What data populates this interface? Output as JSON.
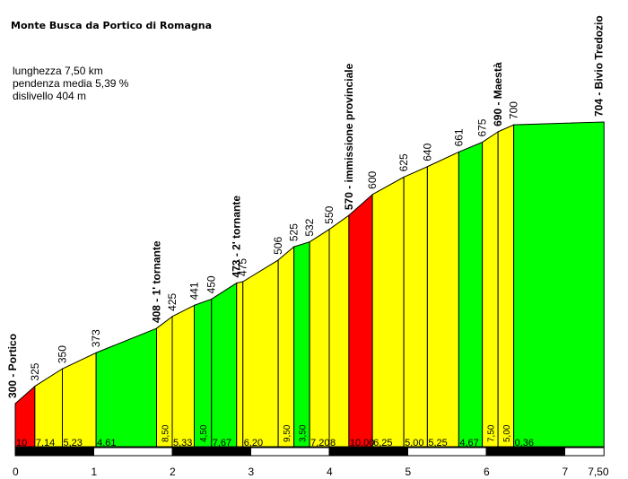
{
  "title": "Monte Busca da Portico di Romagna",
  "stats": {
    "length": "lunghezza 7,50 km",
    "avg_grade": "pendenza media 5,39 %",
    "climb": "dislivello 404 m"
  },
  "chart_data": {
    "type": "area",
    "title": "Monte Busca da Portico di Romagna",
    "x_unit": "km",
    "xlim": [
      0,
      7.5
    ],
    "x_ticks": [
      "0",
      "1",
      "2",
      "3",
      "4",
      "5",
      "6",
      "7",
      "7,50"
    ],
    "ylim": [
      270,
      710
    ],
    "colors": {
      "yellow": "#ffff00",
      "green": "#00ff00",
      "red": "#ff0000",
      "outline": "#000000"
    },
    "points": [
      {
        "x": 0.0,
        "y": 300,
        "label": "300 - Portico",
        "bold": true
      },
      {
        "x": 0.25,
        "y": 325,
        "label": "325"
      },
      {
        "x": 0.6,
        "y": 350,
        "label": "350"
      },
      {
        "x": 1.03,
        "y": 373,
        "label": "373"
      },
      {
        "x": 1.8,
        "y": 408,
        "label": "408 - 1' tornante",
        "bold": true
      },
      {
        "x": 2.0,
        "y": 425,
        "label": "425"
      },
      {
        "x": 2.28,
        "y": 441,
        "label": "441"
      },
      {
        "x": 2.5,
        "y": 450,
        "label": "450"
      },
      {
        "x": 2.82,
        "y": 473,
        "label": "473 - 2' tornante",
        "bold": true
      },
      {
        "x": 2.9,
        "y": 475,
        "label": "475"
      },
      {
        "x": 3.35,
        "y": 506,
        "label": "506"
      },
      {
        "x": 3.55,
        "y": 525,
        "label": "525"
      },
      {
        "x": 3.75,
        "y": 532,
        "label": "532"
      },
      {
        "x": 4.0,
        "y": 550,
        "label": "550"
      },
      {
        "x": 4.25,
        "y": 570,
        "label": "570 - immissione provinciale",
        "bold": true
      },
      {
        "x": 4.55,
        "y": 600,
        "label": "600"
      },
      {
        "x": 4.95,
        "y": 625,
        "label": "625"
      },
      {
        "x": 5.25,
        "y": 640,
        "label": "640"
      },
      {
        "x": 5.65,
        "y": 661,
        "label": "661"
      },
      {
        "x": 5.95,
        "y": 675,
        "label": "675"
      },
      {
        "x": 6.15,
        "y": 690,
        "label": "690 - Maestà",
        "bold": true
      },
      {
        "x": 6.35,
        "y": 700,
        "label": "700"
      },
      {
        "x": 7.5,
        "y": 704,
        "label": "704 - Bivio Tredozio",
        "bold": true
      }
    ],
    "segments": [
      {
        "grade": "10",
        "color": "red"
      },
      {
        "grade": "7,14",
        "color": "yellow"
      },
      {
        "grade": "5,23",
        "color": "yellow"
      },
      {
        "grade": "4,61",
        "color": "green"
      },
      {
        "grade": "8,50",
        "color": "yellow"
      },
      {
        "grade": "5,33",
        "color": "yellow"
      },
      {
        "grade": "4,50",
        "color": "green"
      },
      {
        "grade": "7,67",
        "color": "green"
      },
      {
        "grade": "",
        "color": "yellow"
      },
      {
        "grade": "6,20",
        "color": "yellow"
      },
      {
        "grade": "9,50",
        "color": "yellow"
      },
      {
        "grade": "3,50",
        "color": "green"
      },
      {
        "grade": "7,20",
        "color": "yellow"
      },
      {
        "grade": "8",
        "color": "yellow"
      },
      {
        "grade": "10,00",
        "color": "red"
      },
      {
        "grade": "6,25",
        "color": "yellow"
      },
      {
        "grade": "5,00",
        "color": "yellow"
      },
      {
        "grade": "5,25",
        "color": "yellow"
      },
      {
        "grade": "4,67",
        "color": "green"
      },
      {
        "grade": "7,50",
        "color": "yellow"
      },
      {
        "grade": "5,00",
        "color": "yellow"
      },
      {
        "grade": "0,36",
        "color": "green"
      }
    ]
  }
}
